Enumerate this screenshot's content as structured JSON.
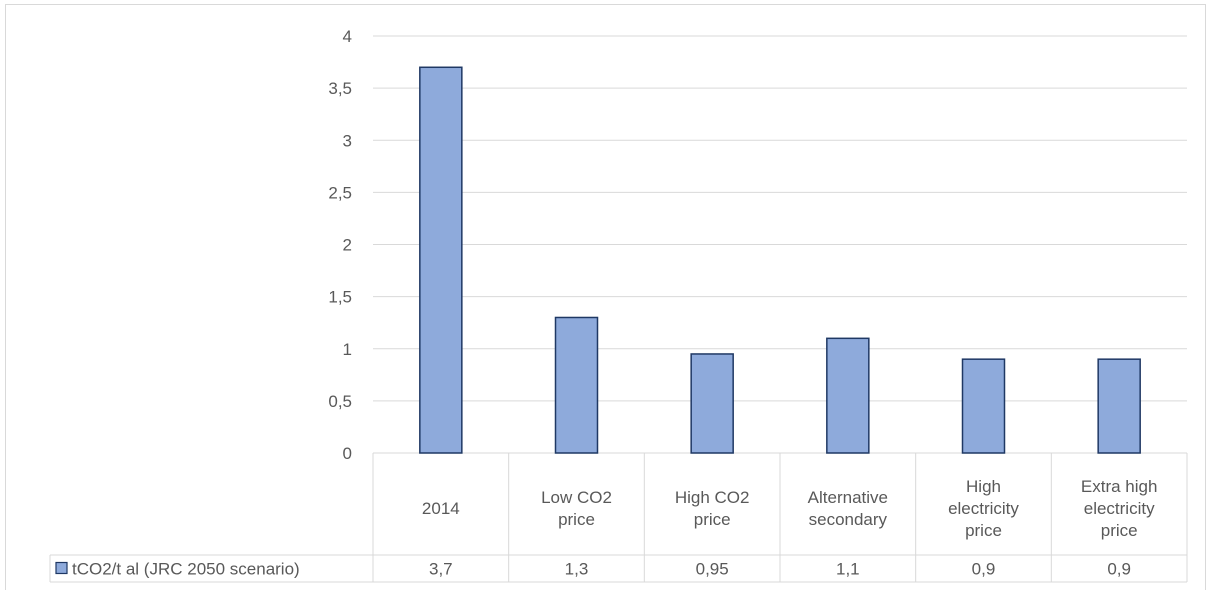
{
  "chart_data": {
    "type": "bar",
    "categories": [
      [
        "2014"
      ],
      [
        "Low CO2",
        "price"
      ],
      [
        "High CO2",
        "price"
      ],
      [
        "Alternative",
        "secondary"
      ],
      [
        "High",
        "electricity",
        "price"
      ],
      [
        "Extra high",
        "electricity",
        "price"
      ]
    ],
    "series": [
      {
        "name": "tCO2/t al (JRC 2050 scenario)",
        "values": [
          3.7,
          1.3,
          0.95,
          1.1,
          0.9,
          0.9
        ],
        "labels": [
          "3,7",
          "1,3",
          "0,95",
          "1,1",
          "0,9",
          "0,9"
        ]
      }
    ],
    "y_ticks": [
      "0",
      "0,5",
      "1",
      "1,5",
      "2",
      "2,5",
      "3",
      "3,5",
      "4"
    ],
    "ylim": [
      0,
      4
    ],
    "grid": true,
    "data_table": true,
    "colors": {
      "bar_fill": "#8eaadb",
      "bar_stroke": "#1f3864",
      "grid": "#d9d9d9"
    }
  }
}
